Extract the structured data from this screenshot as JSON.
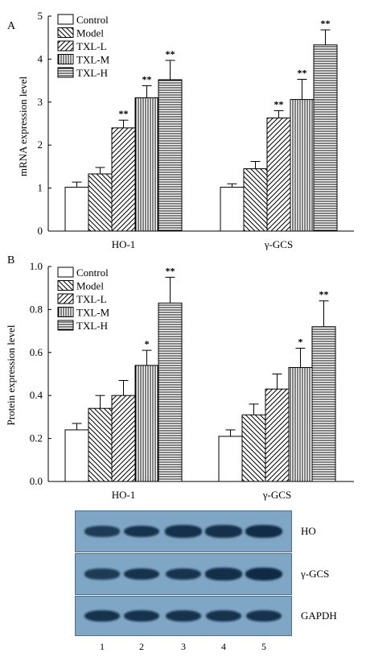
{
  "chart_data": [
    {
      "panel_letter": "A",
      "type": "bar",
      "ylabel": "mRNA expression level",
      "ylim": [
        0,
        5
      ],
      "yticks": [
        0,
        1,
        2,
        3,
        4,
        5
      ],
      "categories": [
        "HO-1",
        "γ-GCS"
      ],
      "legend_position": "top-left",
      "series": [
        {
          "name": "Control",
          "values": [
            1.02,
            1.02
          ],
          "errors": [
            0.12,
            0.08
          ],
          "marks": [
            "",
            ""
          ],
          "pattern": "none"
        },
        {
          "name": "Model",
          "values": [
            1.33,
            1.45
          ],
          "errors": [
            0.15,
            0.17
          ],
          "marks": [
            "",
            ""
          ],
          "pattern": "backslash"
        },
        {
          "name": "TXL-L",
          "values": [
            2.4,
            2.63
          ],
          "errors": [
            0.18,
            0.17
          ],
          "marks": [
            "**",
            "**"
          ],
          "pattern": "slash"
        },
        {
          "name": "TXL-M",
          "values": [
            3.1,
            3.06
          ],
          "errors": [
            0.28,
            0.47
          ],
          "marks": [
            "**",
            "**"
          ],
          "pattern": "vertical"
        },
        {
          "name": "TXL-H",
          "values": [
            3.52,
            4.33
          ],
          "errors": [
            0.45,
            0.35
          ],
          "marks": [
            "**",
            "**"
          ],
          "pattern": "horizontal"
        }
      ]
    },
    {
      "panel_letter": "B",
      "type": "bar",
      "ylabel": "Protein expression level",
      "ylim": [
        0,
        1.0
      ],
      "yticks": [
        0,
        0.2,
        0.4,
        0.6,
        0.8,
        1.0
      ],
      "categories": [
        "HO-1",
        "γ-GCS"
      ],
      "legend_position": "top-left",
      "series": [
        {
          "name": "Control",
          "values": [
            0.24,
            0.21
          ],
          "errors": [
            0.03,
            0.03
          ],
          "marks": [
            "",
            ""
          ],
          "pattern": "none"
        },
        {
          "name": "Model",
          "values": [
            0.34,
            0.31
          ],
          "errors": [
            0.06,
            0.05
          ],
          "marks": [
            "",
            ""
          ],
          "pattern": "backslash"
        },
        {
          "name": "TXL-L",
          "values": [
            0.4,
            0.43
          ],
          "errors": [
            0.07,
            0.07
          ],
          "marks": [
            "",
            ""
          ],
          "pattern": "slash"
        },
        {
          "name": "TXL-M",
          "values": [
            0.54,
            0.53
          ],
          "errors": [
            0.07,
            0.09
          ],
          "marks": [
            "*",
            "*"
          ],
          "pattern": "vertical"
        },
        {
          "name": "TXL-H",
          "values": [
            0.83,
            0.72
          ],
          "errors": [
            0.12,
            0.12
          ],
          "marks": [
            "**",
            "**"
          ],
          "pattern": "horizontal"
        }
      ]
    }
  ],
  "western_blot": {
    "rows": [
      {
        "label": "HO",
        "intensities": [
          0.7,
          0.85,
          0.88,
          0.88,
          0.95
        ]
      },
      {
        "label": "γ-GCS",
        "intensities": [
          0.7,
          0.85,
          0.83,
          0.92,
          1.0
        ]
      },
      {
        "label": "GAPDH",
        "intensities": [
          0.85,
          0.85,
          0.85,
          0.85,
          0.85
        ]
      }
    ],
    "lanes": [
      "1",
      "2",
      "3",
      "4",
      "5"
    ],
    "colors": {
      "background": "#7fa6c4",
      "band": "#0f2a45"
    }
  }
}
